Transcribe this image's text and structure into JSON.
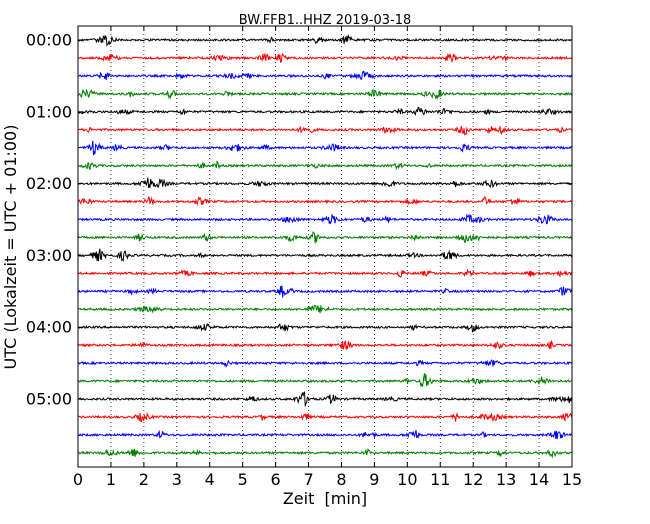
{
  "chart_data": {
    "type": "line",
    "title": "BW.FFB1..HHZ 2019-03-18",
    "xlabel": "Zeit  [min]",
    "ylabel": "UTC (Lokalzeit = UTC + 01:00)",
    "xlim": [
      0,
      15
    ],
    "x_ticks": [
      "0",
      "1",
      "2",
      "3",
      "4",
      "5",
      "6",
      "7",
      "8",
      "9",
      "10",
      "11",
      "12",
      "13",
      "14",
      "15"
    ],
    "y_tick_labels": [
      "00:00",
      "01:00",
      "02:00",
      "03:00",
      "04:00",
      "05:00"
    ],
    "grid": "vertical dotted",
    "trace_interval_min": 15,
    "trace_count": 24,
    "trace_colors": [
      "#000000",
      "#ff0000",
      "#0000ff",
      "#007f00"
    ]
  }
}
